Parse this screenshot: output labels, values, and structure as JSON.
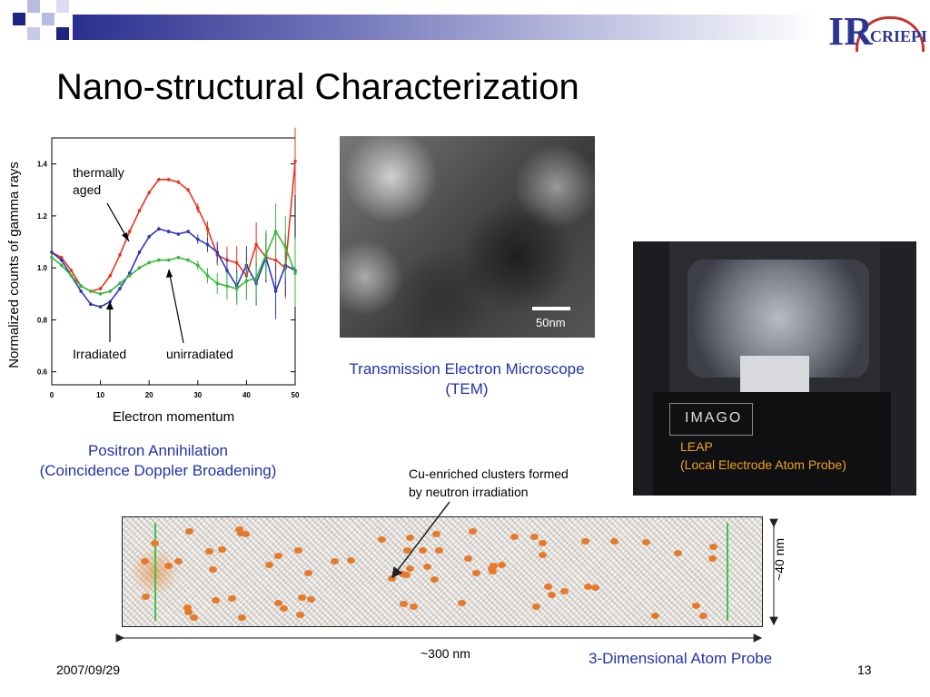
{
  "slide": {
    "title": "Nano-structural Characterization",
    "date": "2007/09/29",
    "page_number": "13",
    "logo_text_ir": "IR",
    "logo_text_org": "CRIEPI"
  },
  "chart_data": {
    "type": "line",
    "title": "",
    "xlabel": "Electron momentum",
    "ylabel": "Normalized counts of gamma rays",
    "xlim": [
      0,
      50
    ],
    "ylim": [
      0.55,
      1.5
    ],
    "x_ticks": [
      "0",
      "10",
      "20",
      "30",
      "40",
      "50"
    ],
    "y_ticks": [
      "0.6",
      "0.8",
      "1.0",
      "1.2",
      "1.4"
    ],
    "x": [
      0,
      2,
      4,
      6,
      8,
      10,
      12,
      14,
      16,
      18,
      20,
      22,
      24,
      26,
      28,
      30,
      32,
      34,
      36,
      38,
      40,
      42,
      44,
      46,
      48,
      50
    ],
    "series": [
      {
        "color": "#e8341c",
        "values": [
          1.06,
          1.04,
          0.99,
          0.93,
          0.91,
          0.92,
          0.97,
          1.05,
          1.14,
          1.22,
          1.29,
          1.34,
          1.34,
          1.33,
          1.3,
          1.23,
          1.15,
          1.05,
          1.03,
          1.02,
          0.97,
          1.09,
          1.04,
          1.03,
          1.0,
          1.41
        ]
      },
      {
        "color": "#2f37b8",
        "values": [
          1.06,
          1.03,
          0.97,
          0.91,
          0.86,
          0.85,
          0.87,
          0.92,
          0.98,
          1.06,
          1.12,
          1.15,
          1.14,
          1.13,
          1.14,
          1.11,
          1.09,
          1.06,
          0.99,
          0.93,
          1.01,
          0.94,
          1.04,
          0.91,
          1.01,
          0.99
        ]
      },
      {
        "color": "#36b83a",
        "values": [
          1.04,
          1.01,
          0.97,
          0.93,
          0.91,
          0.9,
          0.91,
          0.94,
          0.97,
          1.0,
          1.02,
          1.03,
          1.03,
          1.04,
          1.03,
          1.01,
          0.97,
          0.94,
          0.93,
          0.92,
          0.95,
          0.96,
          1.05,
          1.14,
          1.08,
          0.98
        ]
      }
    ],
    "annotations": [
      "thermally aged",
      "Irradiated",
      "unirradiated"
    ]
  },
  "chart_caption": {
    "line1": "Positron Annihilation",
    "line2": "(Coincidence Doppler Broadening)"
  },
  "tem": {
    "scale_label": "50nm",
    "caption_line1": "Transmission Electron Microscope",
    "caption_line2": "(TEM)"
  },
  "leap": {
    "brand_text": "IMAGO",
    "caption_line1": "LEAP",
    "caption_line2": "(Local Electrode Atom Probe)"
  },
  "atom_probe": {
    "cluster_label_line1": "Cu-enriched clusters formed",
    "cluster_label_line2": "by neutron irradiation",
    "width_label": "~300 nm",
    "height_label": "~40 nm",
    "caption": "3-Dimensional Atom Probe"
  },
  "colors": {
    "accent_blue": "#2033a8",
    "header_navy": "#2a2f8f",
    "cluster_orange": "#e67a2a"
  }
}
